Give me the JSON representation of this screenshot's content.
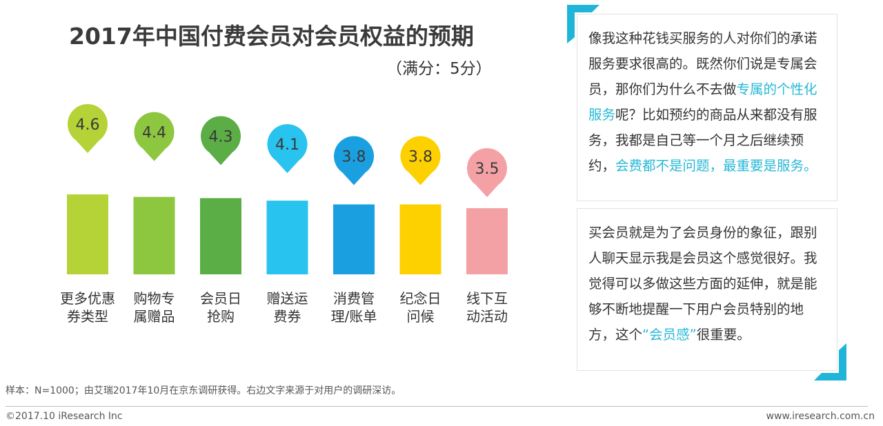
{
  "title": "2017年中国付费会员对会员权益的预期",
  "subtitle": "（满分：5分）",
  "chart_data": {
    "type": "bar",
    "title": "2017年中国付费会员对会员权益的预期",
    "subtitle": "（满分：5分）",
    "categories": [
      [
        "更多优惠",
        "券类型"
      ],
      [
        "购物专",
        "属赠品"
      ],
      [
        "会员日",
        "抢购"
      ],
      [
        "赠送运",
        "费券"
      ],
      [
        "消费管",
        "理/账单"
      ],
      [
        "纪念日",
        "问候"
      ],
      [
        "线下互",
        "动活动"
      ]
    ],
    "values": [
      4.6,
      4.4,
      4.3,
      4.1,
      3.8,
      3.8,
      3.5
    ],
    "value_labels": [
      "4.6",
      "4.4",
      "4.3",
      "4.1",
      "3.8",
      "3.8",
      "3.5"
    ],
    "colors": [
      "#b5d337",
      "#8dc63f",
      "#5bad45",
      "#29c3ef",
      "#1aa0e0",
      "#fdd000",
      "#f4a1a6"
    ],
    "ymax": 5
  },
  "quotes": {
    "q1": {
      "p1": "像我这种花钱买服务的人对你们的承诺 服务要求很高的。既然你们说是专属会员，那你们为什么不去做",
      "h1": "专属的个性化服务",
      "p2": "呢？比如预约的商品从来都没有服务，我都是自己等一个月之后继续预约，",
      "h2": "会费都不是问题，最重要是服务。"
    },
    "q2": {
      "p1": "买会员就是为了会员身份的象征，跟别人聊天显示我是会员这个感觉很好。我觉得可以多做这些方面的延伸，就是能够不断地提醒一下用户会员特别的地方，这个",
      "h1": "“会员感”",
      "p2": "很重要。"
    }
  },
  "accent_color": "#1fb5d8",
  "footnote": "样本：N=1000；由艾瑞2017年10月在京东调研获得。右边文字来源于对用户的调研深访。",
  "copyright": "©2017.10 iResearch Inc",
  "website": "www.iresearch.com.cn"
}
